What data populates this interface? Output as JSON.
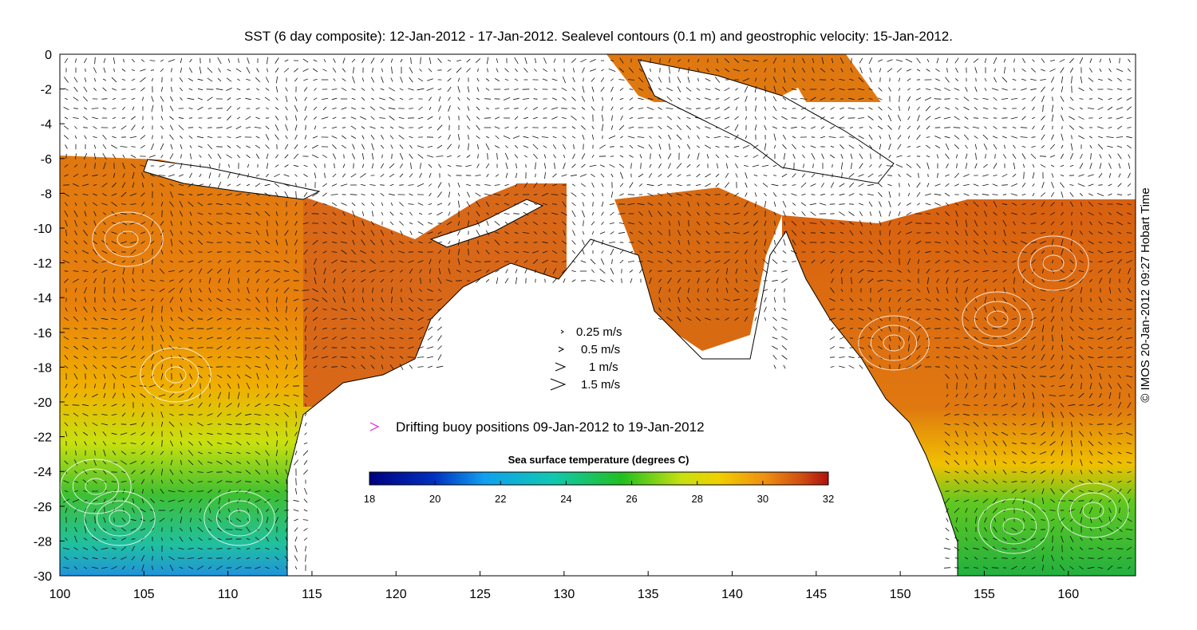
{
  "title": "SST (6 day composite): 12-Jan-2012 - 17-Jan-2012. Sealevel contours (0.1 m) and geostrophic velocity: 15-Jan-2012.",
  "credit": "© IMOS 20-Jan-2012 09:27 Hobart Time",
  "axes": {
    "x_ticks": [
      "100",
      "105",
      "110",
      "115",
      "120",
      "125",
      "130",
      "135",
      "140",
      "145",
      "150",
      "155",
      "160"
    ],
    "y_ticks": [
      "0",
      "-2",
      "-4",
      "-6",
      "-8",
      "-10",
      "-12",
      "-14",
      "-16",
      "-18",
      "-20",
      "-22",
      "-24",
      "-26",
      "-28",
      "-30"
    ],
    "lon_range": [
      100,
      164
    ],
    "lat_range": [
      -30,
      0
    ]
  },
  "velocity_legend": [
    {
      "label": "0.25 m/s",
      "speed": 0.25
    },
    {
      "label": "0.5 m/s",
      "speed": 0.5
    },
    {
      "label": "1 m/s",
      "speed": 1
    },
    {
      "label": "1.5 m/s",
      "speed": 1.5
    }
  ],
  "buoy_legend": {
    "label": "Drifting buoy positions 09-Jan-2012 to 19-Jan-2012",
    "marker_color": "#e020e0"
  },
  "colorbar": {
    "title": "Sea surface temperature (degrees C)",
    "ticks": [
      "18",
      "20",
      "22",
      "24",
      "26",
      "28",
      "30",
      "32"
    ],
    "range": [
      18,
      32
    ]
  },
  "colors": {
    "land": "#ffffff",
    "coast": "#000000",
    "contour": "#ffffff"
  }
}
